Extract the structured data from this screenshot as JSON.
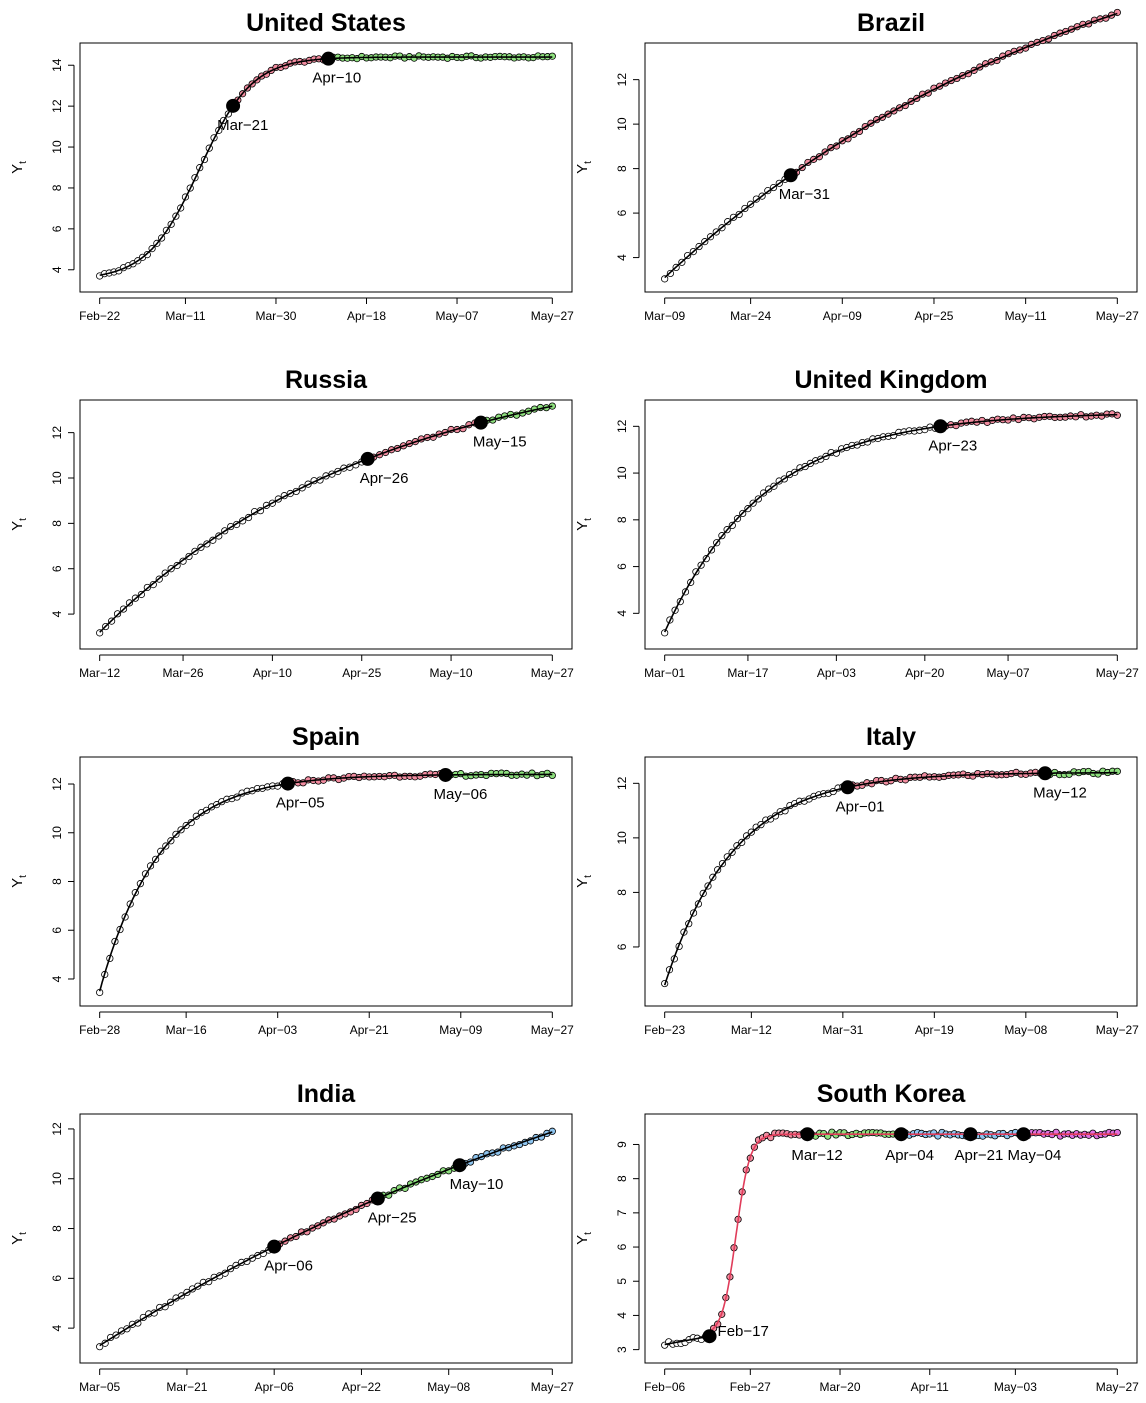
{
  "colors": {
    "fit_line": "#000000",
    "fit_line_alt": "#e03c5a",
    "segments": [
      "#ffffff",
      "#f28ca0",
      "#8ee07e",
      "#8ec5f0",
      "#f28ca0",
      "#e070e0"
    ]
  },
  "chart_data": [
    {
      "type": "scatter",
      "title": "United States",
      "ylabel": "Y",
      "ylabel_sub": "t",
      "x_range": [
        0,
        95
      ],
      "ylim": [
        3.4,
        14.6
      ],
      "x_tick_positions": [
        0,
        18,
        37,
        56,
        75,
        95
      ],
      "x_tick_labels": [
        "Feb−22",
        "Mar−11",
        "Mar−30",
        "Apr−18",
        "May−07",
        "May−27"
      ],
      "y_ticks": [
        4,
        6,
        8,
        10,
        12,
        14
      ],
      "model": {
        "type": "logistic",
        "L": 3.5,
        "U": 14.4,
        "mid": 21,
        "scale": 5.5
      },
      "point_range": [
        0,
        95
      ],
      "line_range": [
        0,
        95
      ],
      "line_color_key": "fit_line",
      "breakpoints": [
        {
          "x": 28,
          "label": "Mar−21"
        },
        {
          "x": 48,
          "label": "Apr−10"
        }
      ],
      "segment_color_keys": [
        0,
        1,
        2
      ],
      "annotation_offset": [
        -16,
        28
      ]
    },
    {
      "type": "scatter",
      "title": "Brazil",
      "ylabel": "Y",
      "ylabel_sub": "t",
      "x_range": [
        0,
        79
      ],
      "ylim": [
        2.9,
        13.2
      ],
      "x_tick_positions": [
        0,
        15,
        31,
        47,
        63,
        79
      ],
      "x_tick_labels": [
        "Mar−09",
        "Mar−24",
        "Apr−09",
        "Apr−25",
        "May−11",
        "May−27"
      ],
      "y_ticks": [
        4,
        6,
        8,
        10,
        12
      ],
      "model": {
        "type": "saturating",
        "A": 3.1,
        "B": 18.5,
        "k": 0.013
      },
      "point_range": [
        0,
        79
      ],
      "line_range": [
        0,
        79
      ],
      "line_color_key": "fit_line",
      "breakpoints": [
        {
          "x": 22,
          "label": "Mar−31"
        }
      ],
      "segment_color_keys": [
        0,
        1
      ],
      "annotation_offset": [
        -12,
        28
      ]
    },
    {
      "type": "scatter",
      "title": "Russia",
      "ylabel": "Y",
      "ylabel_sub": "t",
      "x_range": [
        0,
        76
      ],
      "ylim": [
        2.9,
        13.0
      ],
      "x_tick_positions": [
        0,
        14,
        29,
        44,
        59,
        76
      ],
      "x_tick_labels": [
        "Mar−12",
        "Mar−26",
        "Apr−10",
        "Apr−25",
        "May−10",
        "May−27"
      ],
      "y_ticks": [
        4,
        6,
        8,
        10,
        12
      ],
      "model": {
        "type": "saturating",
        "A": 3.2,
        "B": 12.5,
        "k": 0.021
      },
      "point_range": [
        0,
        76
      ],
      "line_range": [
        0,
        76
      ],
      "line_color_key": "fit_line",
      "breakpoints": [
        {
          "x": 45,
          "label": "Apr−26"
        },
        {
          "x": 64,
          "label": "May−15"
        }
      ],
      "segment_color_keys": [
        0,
        1,
        2
      ],
      "annotation_offset": [
        -8,
        28
      ]
    },
    {
      "type": "scatter",
      "title": "United Kingdom",
      "ylabel": "Y",
      "ylabel_sub": "t",
      "x_range": [
        0,
        87
      ],
      "ylim": [
        2.9,
        12.7
      ],
      "x_tick_positions": [
        0,
        16,
        33,
        50,
        66,
        87
      ],
      "x_tick_labels": [
        "Mar−01",
        "Mar−17",
        "Apr−03",
        "Apr−20",
        "May−07",
        "May−27"
      ],
      "y_ticks": [
        4,
        6,
        8,
        10,
        12
      ],
      "model": {
        "type": "saturating",
        "A": 3.2,
        "B": 9.4,
        "k": 0.052
      },
      "point_range": [
        0,
        87
      ],
      "line_range": [
        0,
        87
      ],
      "line_color_key": "fit_line",
      "breakpoints": [
        {
          "x": 53,
          "label": "Apr−23"
        }
      ],
      "segment_color_keys": [
        0,
        1
      ],
      "annotation_offset": [
        -12,
        28
      ]
    },
    {
      "type": "scatter",
      "title": "Spain",
      "ylabel": "Y",
      "ylabel_sub": "t",
      "x_range": [
        0,
        89
      ],
      "ylim": [
        3.3,
        12.7
      ],
      "x_tick_positions": [
        0,
        17,
        35,
        53,
        71,
        89
      ],
      "x_tick_labels": [
        "Feb−28",
        "Mar−16",
        "Apr−03",
        "Apr−21",
        "May−09",
        "May−27"
      ],
      "y_ticks": [
        4,
        6,
        8,
        10,
        12
      ],
      "model": {
        "type": "saturating",
        "A": 3.5,
        "B": 8.9,
        "k": 0.085
      },
      "point_range": [
        0,
        89
      ],
      "line_range": [
        0,
        89
      ],
      "line_color_key": "fit_line",
      "breakpoints": [
        {
          "x": 37,
          "label": "Apr−05"
        },
        {
          "x": 68,
          "label": "May−06"
        }
      ],
      "segment_color_keys": [
        0,
        1,
        2
      ],
      "annotation_offset": [
        -12,
        28
      ]
    },
    {
      "type": "scatter",
      "title": "Italy",
      "ylabel": "Y",
      "ylabel_sub": "t",
      "x_range": [
        0,
        94
      ],
      "ylim": [
        4.2,
        12.6
      ],
      "x_tick_positions": [
        0,
        18,
        37,
        56,
        75,
        94
      ],
      "x_tick_labels": [
        "Feb−23",
        "Mar−12",
        "Mar−31",
        "Apr−19",
        "May−08",
        "May−27"
      ],
      "y_ticks": [
        6,
        8,
        10,
        12
      ],
      "model": {
        "type": "saturating",
        "A": 4.6,
        "B": 7.8,
        "k": 0.07
      },
      "point_range": [
        0,
        94
      ],
      "line_range": [
        0,
        94
      ],
      "line_color_key": "fit_line",
      "breakpoints": [
        {
          "x": 38,
          "label": "Apr−01"
        },
        {
          "x": 79,
          "label": "May−12"
        }
      ],
      "segment_color_keys": [
        0,
        1,
        2
      ],
      "annotation_offset": [
        -12,
        28
      ]
    },
    {
      "type": "scatter",
      "title": "India",
      "ylabel": "Y",
      "ylabel_sub": "t",
      "x_range": [
        0,
        83
      ],
      "ylim": [
        3.0,
        12.2
      ],
      "x_tick_positions": [
        0,
        16,
        32,
        48,
        64,
        83
      ],
      "x_tick_labels": [
        "Mar−05",
        "Mar−21",
        "Apr−06",
        "Apr−22",
        "May−08",
        "May−27"
      ],
      "y_ticks": [
        4,
        6,
        8,
        10,
        12
      ],
      "model": {
        "type": "saturating",
        "A": 3.3,
        "B": 18.0,
        "k": 0.0078
      },
      "point_range": [
        0,
        83
      ],
      "line_range": [
        0,
        83
      ],
      "line_color_key": "fit_line",
      "breakpoints": [
        {
          "x": 32,
          "label": "Apr−06"
        },
        {
          "x": 51,
          "label": "Apr−25"
        },
        {
          "x": 66,
          "label": "May−10"
        }
      ],
      "segment_color_keys": [
        0,
        1,
        2,
        3
      ],
      "annotation_offset": [
        -10,
        28
      ]
    },
    {
      "type": "scatter",
      "title": "South Korea",
      "ylabel": "Y",
      "ylabel_sub": "t",
      "x_range": [
        0,
        111
      ],
      "ylim": [
        2.9,
        9.6
      ],
      "x_tick_positions": [
        0,
        21,
        43,
        65,
        86,
        111
      ],
      "x_tick_labels": [
        "Feb−06",
        "Feb−27",
        "Mar−20",
        "Apr−11",
        "May−03",
        "May−27"
      ],
      "y_ticks": [
        3,
        4,
        5,
        6,
        7,
        8,
        9
      ],
      "model": {
        "type": "two_phase",
        "base": 3.15,
        "start_slope": 0.022,
        "L": 3.4,
        "U": 9.3,
        "mid": 17.5,
        "scale": 1.7,
        "switch": 11
      },
      "point_range": [
        0,
        111
      ],
      "line_range": [
        11,
        111
      ],
      "line_color_key": "fit_line_alt",
      "breakpoints": [
        {
          "x": 11,
          "label": "Feb−17"
        },
        {
          "x": 35,
          "label": "Mar−12"
        },
        {
          "x": 58,
          "label": "Apr−04"
        },
        {
          "x": 75,
          "label": "Apr−21"
        },
        {
          "x": 88,
          "label": "May−04"
        }
      ],
      "segment_color_keys": [
        0,
        4,
        2,
        3,
        3,
        5
      ],
      "annotation_offset": [
        -4,
        28
      ],
      "annotation_overrides": [
        [
          8,
          4
        ],
        [
          -16,
          30
        ],
        [
          -16,
          30
        ],
        [
          -16,
          30
        ],
        [
          -16,
          30
        ]
      ]
    }
  ]
}
